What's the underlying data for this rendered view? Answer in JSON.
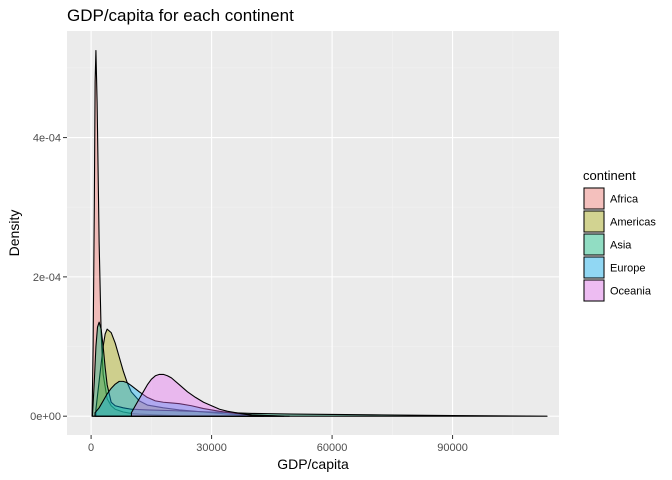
{
  "chart_data": {
    "type": "area",
    "title": "GDP/capita for each continent",
    "xlabel": "GDP/capita",
    "ylabel": "Density",
    "xlim": [
      -6000,
      116500
    ],
    "ylim": [
      -2.7e-05,
      0.000553
    ],
    "x_ticks": [
      0,
      30000,
      60000,
      90000
    ],
    "x_tick_labels": [
      "0",
      "30000",
      "60000",
      "90000"
    ],
    "y_ticks": [
      0,
      0.0002,
      0.0004
    ],
    "y_tick_labels": [
      "0e+00",
      "2e-04",
      "4e-04"
    ],
    "grid": true,
    "legend": {
      "title": "continent",
      "placement": "right"
    },
    "series": [
      {
        "name": "Africa",
        "color": "#F8766D",
        "x": [
          241,
          500,
          800,
          1000,
          1200,
          1500,
          2000,
          2500,
          3000,
          4000,
          5000,
          6000,
          8000,
          10000,
          12000,
          14000,
          16000,
          18000,
          20000,
          22000,
          21951
        ],
        "y": [
          0,
          0.0001,
          0.0003,
          0.00048,
          0.000525,
          0.00045,
          0.00025,
          0.00012,
          6e-05,
          2.5e-05,
          1.5e-05,
          1e-05,
          6e-06,
          4e-06,
          3e-06,
          2.5e-06,
          2e-06,
          1.5e-06,
          1e-06,
          5e-07,
          0
        ]
      },
      {
        "name": "Americas",
        "color": "#A3A500",
        "x": [
          1202,
          2000,
          3000,
          3500,
          4000,
          5000,
          6000,
          7000,
          8000,
          9000,
          10000,
          12000,
          14000,
          18000,
          22000,
          26000,
          30000,
          34000,
          38000,
          42952
        ],
        "y": [
          1e-05,
          5e-05,
          0.0001,
          0.000118,
          0.000125,
          0.00012,
          0.000105,
          8.5e-05,
          6.5e-05,
          4.8e-05,
          3.5e-05,
          2.2e-05,
          1.6e-05,
          1.2e-05,
          9e-06,
          7e-06,
          5e-06,
          3e-06,
          1.5e-06,
          0
        ]
      },
      {
        "name": "Asia",
        "color": "#00BF7D",
        "x": [
          331,
          800,
          1200,
          1600,
          2000,
          2500,
          3000,
          3500,
          4000,
          5000,
          6000,
          8000,
          10000,
          14000,
          20000,
          30000,
          40000,
          50000,
          70000,
          90000,
          113523
        ],
        "y": [
          0,
          5e-05,
          0.0001,
          0.000128,
          0.000135,
          0.000125,
          0.0001,
          7e-05,
          4.5e-05,
          2e-05,
          1.5e-05,
          1.2e-05,
          1e-05,
          9e-06,
          8e-06,
          6e-06,
          4e-06,
          3e-06,
          2e-06,
          1e-06,
          0
        ]
      },
      {
        "name": "Europe",
        "color": "#00B0F6",
        "x": [
          974,
          2000,
          3000,
          4000,
          5000,
          6000,
          7000,
          8000,
          9000,
          10000,
          12000,
          14000,
          16000,
          18000,
          20000,
          22000,
          25000,
          28000,
          32000,
          36000,
          40000,
          44000,
          49357
        ],
        "y": [
          5e-06,
          1.2e-05,
          2.2e-05,
          3.2e-05,
          4e-05,
          4.6e-05,
          5e-05,
          5e-05,
          4.8e-05,
          4.4e-05,
          3.5e-05,
          2.7e-05,
          2.2e-05,
          2e-05,
          1.9e-05,
          1.8e-05,
          1.5e-05,
          1.1e-05,
          7e-06,
          4e-06,
          2e-06,
          1e-06,
          0
        ]
      },
      {
        "name": "Oceania",
        "color": "#E76BF3",
        "x": [
          10040,
          11000,
          12000,
          13000,
          14000,
          15000,
          16000,
          17000,
          18000,
          19000,
          20000,
          22000,
          24000,
          26000,
          28000,
          30000,
          32000,
          34000,
          36000,
          38000,
          40000,
          42000,
          45000,
          48000
        ],
        "y": [
          5e-06,
          1.5e-05,
          2.5e-05,
          3.5e-05,
          4.5e-05,
          5.3e-05,
          5.8e-05,
          6e-05,
          6e-05,
          5.8e-05,
          5.5e-05,
          4.5e-05,
          3.5e-05,
          2.7e-05,
          2e-05,
          1.5e-05,
          1e-05,
          7e-06,
          5e-06,
          3e-06,
          1.5e-06,
          8e-07,
          3e-07,
          0
        ]
      }
    ]
  }
}
